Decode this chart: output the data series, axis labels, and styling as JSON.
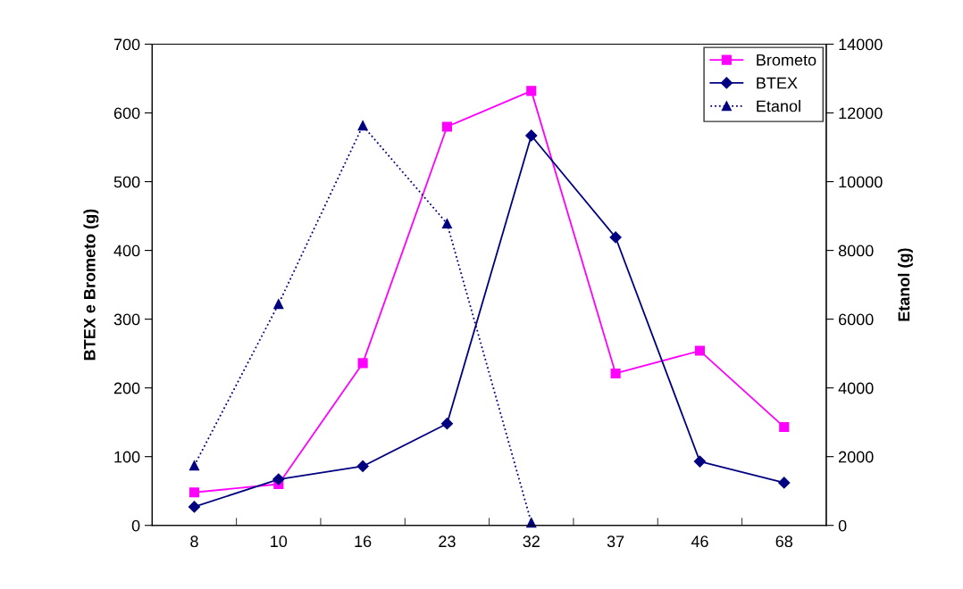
{
  "chart_data": {
    "type": "line",
    "ylabel": "BTEX e Brometo (g)",
    "y2label": "Etanol (g)",
    "categories": [
      "8",
      "10",
      "16",
      "23",
      "32",
      "37",
      "46",
      "68"
    ],
    "series": [
      {
        "name": "Brometo",
        "color": "#ff00ff",
        "marker": "square",
        "line_style": "solid",
        "values": [
          48,
          60,
          236,
          580,
          632,
          221,
          254,
          143
        ]
      },
      {
        "name": "BTEX",
        "color": "#000080",
        "marker": "diamond",
        "line_style": "solid",
        "values": [
          27,
          67,
          86,
          148,
          567,
          419,
          93,
          62
        ]
      },
      {
        "name": "Etanol",
        "color": "#000080",
        "marker": "triangle",
        "line_style": "dotted",
        "axis": "y2",
        "values": [
          1740,
          6440,
          11630,
          8780,
          80,
          null,
          null,
          null
        ]
      }
    ],
    "ylim": [
      0,
      700
    ],
    "yticks": [
      0,
      100,
      200,
      300,
      400,
      500,
      600,
      700
    ],
    "y2lim": [
      0,
      14000
    ],
    "y2ticks": [
      0,
      2000,
      4000,
      6000,
      8000,
      10000,
      12000,
      14000
    ],
    "grid": false,
    "legend": "top right"
  }
}
